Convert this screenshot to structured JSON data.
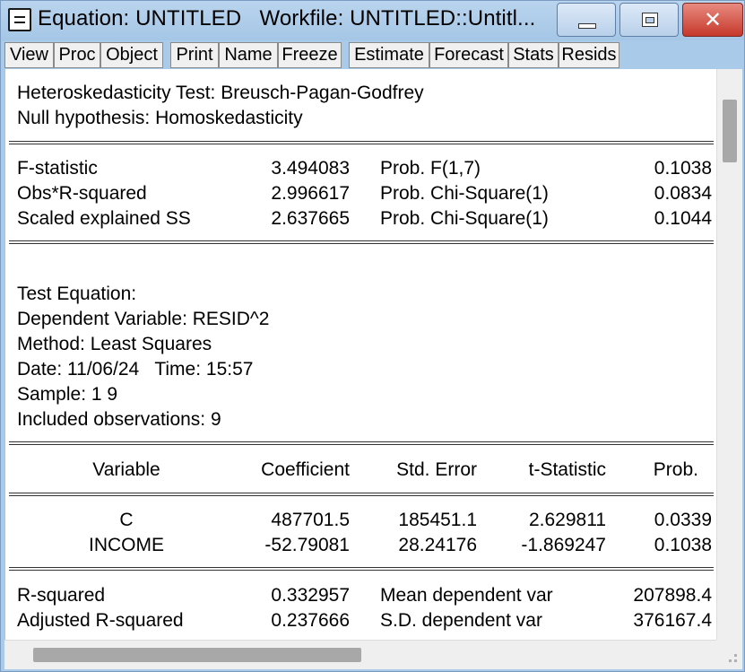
{
  "window": {
    "title": "Equation: UNTITLED   Workfile: UNTITLED::Untitl..."
  },
  "toolbar": {
    "buttons": [
      "View",
      "Proc",
      "Object",
      "Print",
      "Name",
      "Freeze",
      "Estimate",
      "Forecast",
      "Stats",
      "Resids"
    ]
  },
  "output": {
    "header_line1": "Heteroskedasticity Test: Breusch-Pagan-Godfrey",
    "header_line2": "Null hypothesis: Homoskedasticity",
    "test_stats": [
      {
        "label": "F-statistic",
        "value": "3.494083",
        "prob_label": "Prob. F(1,7)",
        "prob": "0.1038"
      },
      {
        "label": "Obs*R-squared",
        "value": "2.996617",
        "prob_label": "Prob. Chi-Square(1)",
        "prob": "0.0834"
      },
      {
        "label": "Scaled explained SS",
        "value": "2.637665",
        "prob_label": "Prob. Chi-Square(1)",
        "prob": "0.1044"
      }
    ],
    "test_equation": [
      "Test Equation:",
      "Dependent Variable: RESID^2",
      "Method: Least Squares",
      "Date: 11/06/24   Time: 15:57",
      "Sample: 1 9",
      "Included observations: 9"
    ],
    "coef_headers": [
      "Variable",
      "Coefficient",
      "Std. Error",
      "t-Statistic",
      "Prob."
    ],
    "coef_rows": [
      {
        "variable": "C",
        "coefficient": "487701.5",
        "std_error": "185451.1",
        "t_stat": "2.629811",
        "prob": "0.0339"
      },
      {
        "variable": "INCOME",
        "coefficient": "-52.79081",
        "std_error": "28.24176",
        "t_stat": "-1.869247",
        "prob": "0.1038"
      }
    ],
    "summary_rows": [
      {
        "label": "R-squared",
        "value": "0.332957",
        "label2": "Mean dependent var",
        "value2": "207898.4"
      },
      {
        "label": "Adjusted R-squared",
        "value": "0.237666",
        "label2": "S.D. dependent var",
        "value2": "376167.4"
      }
    ]
  }
}
